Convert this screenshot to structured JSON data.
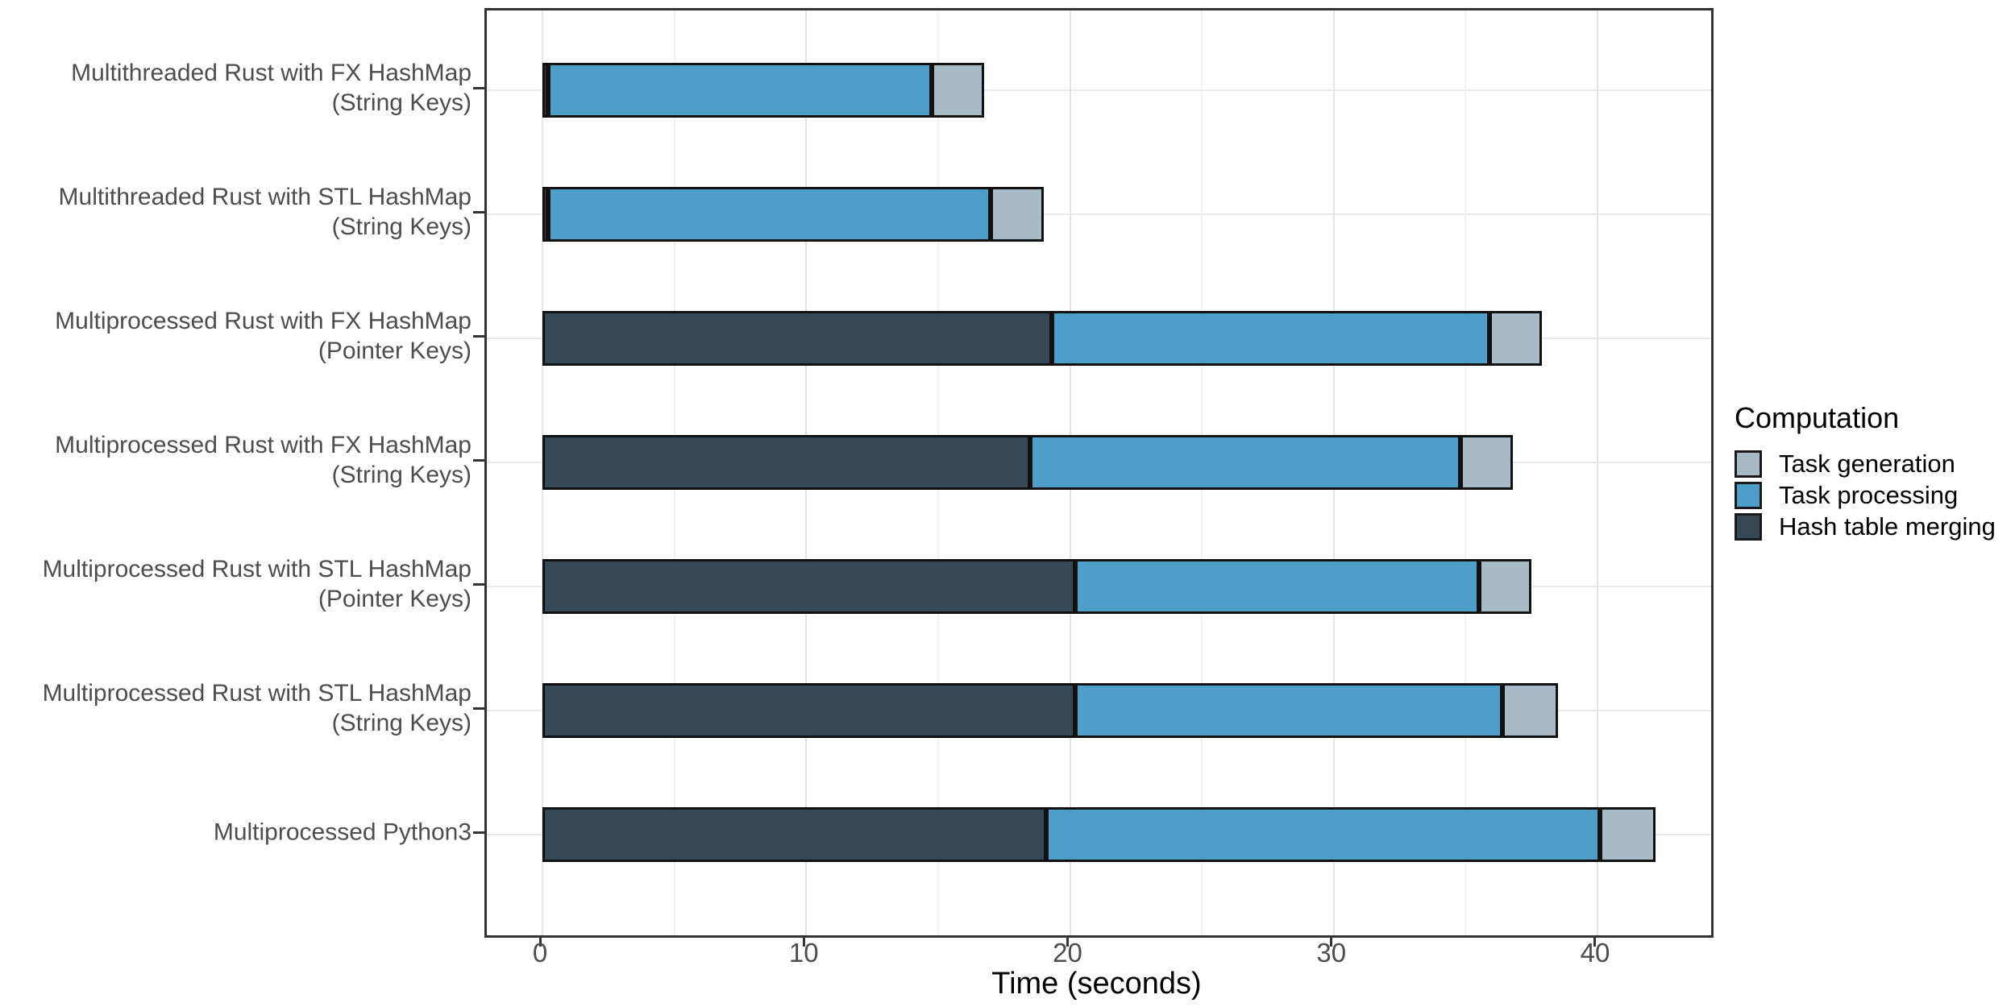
{
  "chart_data": {
    "type": "bar",
    "orientation": "horizontal",
    "stacked": true,
    "title": "",
    "xlabel": "Time (seconds)",
    "ylabel": "",
    "xlim": [
      -2.11,
      44.31
    ],
    "x_major_ticks": [
      0,
      10,
      20,
      30,
      40
    ],
    "x_minor_gridlines": [
      5,
      15,
      25,
      35
    ],
    "grid": "on",
    "panel_background": "#ffffff",
    "categories": [
      [
        "Multithreaded Rust with FX HashMap",
        "(String Keys)"
      ],
      [
        "Multithreaded Rust with STL HashMap",
        "(String Keys)"
      ],
      [
        "Multiprocessed Rust with FX HashMap",
        "(Pointer Keys)"
      ],
      [
        "Multiprocessed Rust with FX HashMap",
        "(String Keys)"
      ],
      [
        "Multiprocessed Rust with STL HashMap",
        "(Pointer Keys)"
      ],
      [
        "Multiprocessed Rust with STL HashMap",
        "(String Keys)"
      ],
      [
        "Multiprocessed Python3"
      ]
    ],
    "series": [
      {
        "name": "Hash table merging",
        "color": "#374957",
        "values": [
          0.2,
          0.2,
          19.3,
          18.5,
          20.2,
          20.2,
          19.1
        ]
      },
      {
        "name": "Task processing",
        "color": "#4f9ec9",
        "values": [
          14.55,
          16.8,
          16.6,
          16.3,
          15.3,
          16.2,
          21.0
        ]
      },
      {
        "name": "Task generation",
        "color": "#a8bac6",
        "values": [
          2.0,
          2.0,
          2.0,
          2.0,
          2.0,
          2.1,
          2.1
        ]
      }
    ],
    "totals": [
      16.75,
      19.0,
      37.9,
      36.8,
      37.5,
      38.5,
      42.2
    ],
    "legend": {
      "title": "Computation",
      "position": "right",
      "entries": [
        {
          "label": "Task generation",
          "color": "#a8bac6"
        },
        {
          "label": "Task processing",
          "color": "#4f9ec9"
        },
        {
          "label": "Hash table merging",
          "color": "#374957"
        }
      ]
    }
  }
}
